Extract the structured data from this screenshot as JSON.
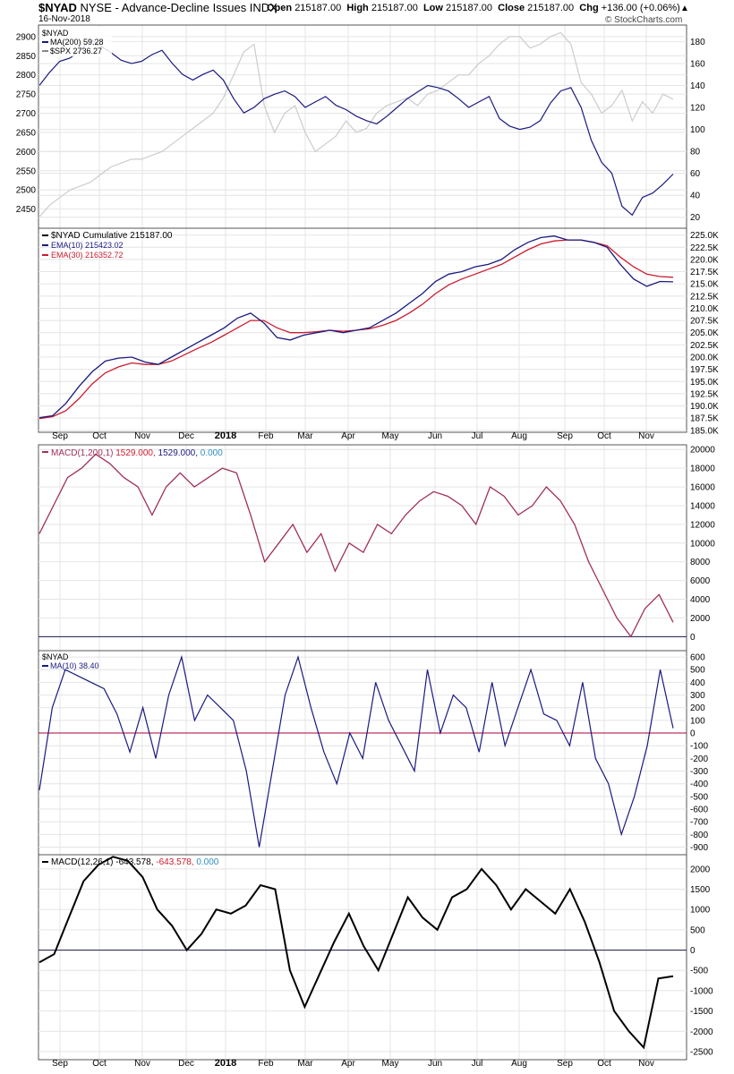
{
  "header": {
    "symbol": "$NYAD",
    "description": "NYSE - Advance-Decline Issues INDX",
    "date": "16-Nov-2018",
    "open_label": "Open",
    "open": "215187.00",
    "high_label": "High",
    "high": "215187.00",
    "low_label": "Low",
    "low": "215187.00",
    "close_label": "Close",
    "close": "215187.00",
    "chg_label": "Chg",
    "chg": "+136.00 (+0.06%)",
    "brand": "© StockCharts.com",
    "arrow": "▲"
  },
  "x_axis": [
    "Sep",
    "Oct",
    "Nov",
    "Dec",
    "2018",
    "Feb",
    "Mar",
    "Apr",
    "May",
    "Jun",
    "Jul",
    "Aug",
    "Sep",
    "Oct",
    "Nov"
  ],
  "colors": {
    "navy": "#1a1a80",
    "spx": "#cccccc",
    "ema30": "#cc1b2e",
    "macd_purple": "#a0305f",
    "zero_red": "#a8003c",
    "black": "#000000",
    "signal_blue": "#2d8fbf"
  },
  "chart_data": [
    {
      "type": "line",
      "panel": "price",
      "legend": [
        "$NYAD",
        "MA(200) 59.28",
        "$SPX 2736.27"
      ],
      "series": [
        {
          "name": "MA(200)",
          "axis": "right",
          "values": [
            140,
            152,
            162,
            165,
            172,
            182,
            176,
            170,
            163,
            160,
            162,
            168,
            172,
            160,
            150,
            145,
            150,
            154,
            145,
            128,
            115,
            120,
            128,
            132,
            135,
            130,
            120,
            125,
            130,
            122,
            118,
            112,
            108,
            105,
            112,
            120,
            128,
            134,
            140,
            138,
            135,
            128,
            120,
            125,
            130,
            110,
            103,
            100,
            102,
            108,
            124,
            135,
            138,
            120,
            90,
            70,
            60,
            30,
            22,
            38,
            42,
            50,
            59.28
          ]
        },
        {
          "name": "$SPX",
          "axis": "left",
          "values": [
            2430,
            2460,
            2480,
            2500,
            2510,
            2520,
            2540,
            2560,
            2570,
            2580,
            2580,
            2590,
            2600,
            2620,
            2640,
            2660,
            2680,
            2700,
            2740,
            2800,
            2860,
            2880,
            2720,
            2650,
            2700,
            2720,
            2650,
            2600,
            2620,
            2640,
            2680,
            2650,
            2660,
            2700,
            2720,
            2730,
            2740,
            2720,
            2750,
            2760,
            2780,
            2800,
            2800,
            2830,
            2850,
            2880,
            2900,
            2900,
            2870,
            2880,
            2900,
            2910,
            2880,
            2780,
            2750,
            2700,
            2720,
            2760,
            2680,
            2730,
            2700,
            2750,
            2736.27
          ]
        }
      ],
      "left_ticks": [
        2900,
        2850,
        2800,
        2750,
        2700,
        2650,
        2600,
        2550,
        2500,
        2450
      ],
      "right_ticks": [
        180,
        160,
        140,
        120,
        100,
        80,
        60,
        40,
        20
      ],
      "left_range": [
        2400,
        2930
      ],
      "right_range": [
        10,
        195
      ]
    },
    {
      "type": "line",
      "panel": "cumulative",
      "legend": [
        "$NYAD Cumulative 215187.00",
        "EMA(10) 215423.02",
        "EMA(30) 216352.72"
      ],
      "series": [
        {
          "name": "EMA(10)",
          "values": [
            187.6,
            188.0,
            190.5,
            194.0,
            197.0,
            199.2,
            199.8,
            200.0,
            199.0,
            198.5,
            200.0,
            201.5,
            203.0,
            204.5,
            206.0,
            208.0,
            209.0,
            207.0,
            204.0,
            203.5,
            204.5,
            205.0,
            205.5,
            205.0,
            205.5,
            206.0,
            207.5,
            209.0,
            211.0,
            213.0,
            215.5,
            217.0,
            217.5,
            218.5,
            219.0,
            220.0,
            222.0,
            223.5,
            224.5,
            224.8,
            224.0,
            224.0,
            223.5,
            222.5,
            219.0,
            216.0,
            214.5,
            215.5,
            215.42
          ]
        },
        {
          "name": "EMA(30)",
          "values": [
            187.4,
            187.8,
            189.0,
            191.5,
            194.5,
            196.8,
            198.0,
            198.8,
            198.5,
            198.5,
            199.2,
            200.5,
            201.8,
            203.0,
            204.5,
            206.0,
            207.5,
            207.5,
            206.0,
            205.0,
            205.0,
            205.2,
            205.5,
            205.3,
            205.5,
            205.8,
            206.5,
            207.5,
            209.0,
            210.8,
            213.0,
            214.8,
            216.0,
            217.0,
            218.0,
            219.0,
            220.5,
            222.0,
            223.2,
            223.8,
            224.0,
            224.0,
            223.5,
            222.8,
            220.5,
            218.5,
            217.0,
            216.5,
            216.35
          ]
        }
      ],
      "ticks": [
        "225.0K",
        "222.5K",
        "220.0K",
        "217.5K",
        "215.0K",
        "212.5K",
        "210.0K",
        "207.5K",
        "205.0K",
        "202.5K",
        "200.0K",
        "197.5K",
        "195.0K",
        "192.5K",
        "190.0K",
        "187.5K",
        "185.0K"
      ],
      "range": [
        184.6,
        226.4
      ]
    },
    {
      "type": "line",
      "panel": "macd_long",
      "legend": [
        "MACD(1,200,1)",
        "1529.000",
        "1529.000",
        "0.000"
      ],
      "series": [
        {
          "name": "MACD(1,200,1)",
          "values": [
            11000,
            14000,
            17000,
            18000,
            19500,
            18500,
            17000,
            16000,
            13000,
            16000,
            17500,
            16000,
            17000,
            18000,
            17500,
            13000,
            8000,
            10000,
            12000,
            9000,
            11000,
            7000,
            10000,
            9000,
            12000,
            11000,
            13000,
            14500,
            15500,
            15000,
            14000,
            12000,
            16000,
            15000,
            13000,
            14000,
            16000,
            14500,
            12000,
            8000,
            5000,
            2000,
            0,
            3000,
            4500,
            1529
          ]
        }
      ],
      "ticks": [
        20000,
        18000,
        16000,
        14000,
        12000,
        10000,
        8000,
        6000,
        4000,
        2000,
        0
      ],
      "range": [
        -1500,
        20500
      ]
    },
    {
      "type": "line",
      "panel": "nyad_ma10",
      "legend": [
        "$NYAD",
        "MA(10) 38.40"
      ],
      "series": [
        {
          "name": "MA(10)",
          "values": [
            -450,
            200,
            500,
            450,
            400,
            350,
            150,
            -150,
            200,
            -200,
            300,
            600,
            100,
            300,
            200,
            100,
            -300,
            -900,
            -300,
            300,
            600,
            200,
            -150,
            -400,
            0,
            -200,
            400,
            100,
            -100,
            -300,
            500,
            0,
            300,
            200,
            -150,
            400,
            -100,
            200,
            500,
            150,
            100,
            -100,
            400,
            -200,
            -400,
            -800,
            -500,
            -100,
            500,
            38.4
          ]
        }
      ],
      "ticks": [
        600,
        500,
        400,
        300,
        200,
        100,
        0,
        -100,
        -200,
        -300,
        -400,
        -500,
        -600,
        -700,
        -800,
        -900
      ],
      "range": [
        -960,
        650
      ]
    },
    {
      "type": "line",
      "panel": "macd_12_26",
      "legend": [
        "MACD(12,26,1)",
        "-643.578",
        "-643.578",
        "0.000"
      ],
      "series": [
        {
          "name": "MACD(12,26,1)",
          "values": [
            -300,
            -100,
            800,
            1700,
            2100,
            2300,
            2200,
            1800,
            1000,
            600,
            0,
            400,
            1000,
            900,
            1100,
            1600,
            1500,
            -500,
            -1400,
            -600,
            200,
            900,
            100,
            -500,
            400,
            1300,
            800,
            500,
            1300,
            1500,
            2000,
            1600,
            1000,
            1500,
            1200,
            900,
            1500,
            700,
            -300,
            -1500,
            -2000,
            -2400,
            -700,
            -643.578
          ]
        }
      ],
      "ticks": [
        2000,
        1500,
        1000,
        500,
        0,
        -500,
        -1000,
        -1500,
        -2000,
        -2500
      ],
      "range": [
        -2700,
        2350
      ]
    }
  ]
}
